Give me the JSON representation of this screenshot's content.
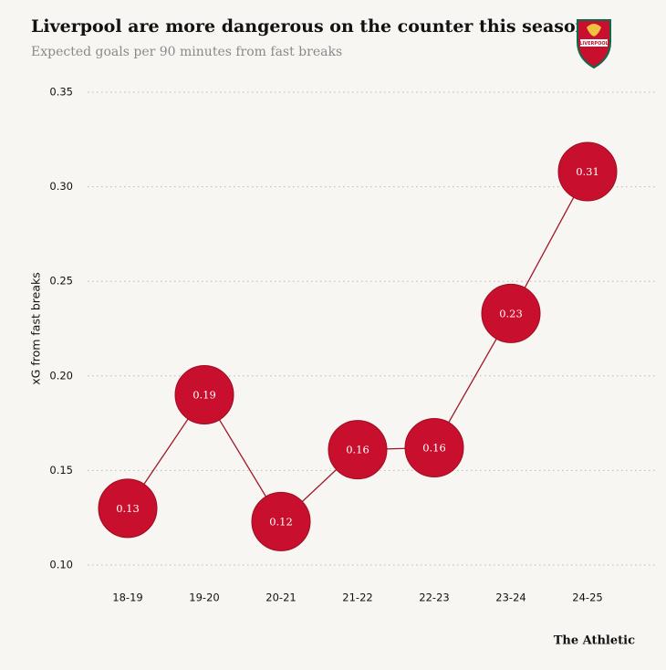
{
  "chart_data": {
    "type": "line",
    "title": "Liverpool are more dangerous on the counter this season",
    "subtitle": "Expected goals per 90 minutes from fast breaks",
    "y_label": "xG from fast breaks",
    "source": "The Athletic",
    "crest_text": "LIVERPOOL",
    "categories": [
      "18-19",
      "19-20",
      "20-21",
      "21-22",
      "22-23",
      "23-24",
      "24-25"
    ],
    "series": [
      {
        "name": "Liverpool",
        "color": "#c8102e",
        "values": [
          0.13,
          0.19,
          0.123,
          0.161,
          0.162,
          0.233,
          0.308
        ],
        "value_labels": [
          "0.13",
          "0.19",
          "0.12",
          "0.16",
          "0.16",
          "0.23",
          "0.31"
        ]
      }
    ],
    "ylim": [
      0.1,
      0.35
    ],
    "yticks": [
      {
        "value": 0.1,
        "label": "0.10"
      },
      0.15,
      {
        "value": 0.2,
        "label": "0.20"
      },
      0.25,
      {
        "value": 0.3,
        "label": "0.30"
      },
      0.35
    ],
    "grid": true
  }
}
